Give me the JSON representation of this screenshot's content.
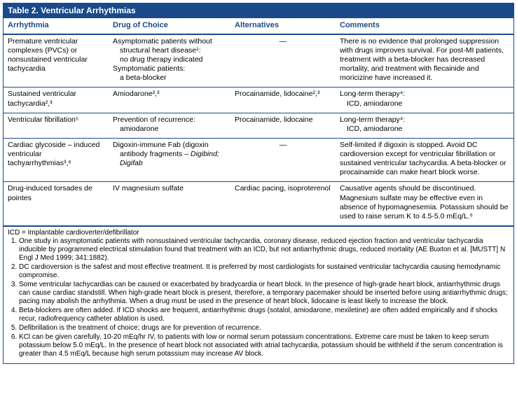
{
  "title": "Table 2. Ventricular Arrhythmias",
  "columns": [
    "Arrhythmia",
    "Drug of Choice",
    "Alternatives",
    "Comments"
  ],
  "col_widths": [
    "150px",
    "174px",
    "150px",
    "auto"
  ],
  "rows": [
    {
      "arr": "Premature ventricular complexes (PVCs) or nonsustained ventricular tachycardia",
      "drug_lines": [
        {
          "t": "Asymptomatic patients without",
          "indent": false
        },
        {
          "t": "structural heart disease¹:",
          "indent": true
        },
        {
          "t": "no drug therapy indicated",
          "indent": true
        },
        {
          "t": "Symptomatic patients:",
          "indent": false
        },
        {
          "t": "a beta-blocker",
          "indent": true
        }
      ],
      "alt": "—",
      "alt_center": true,
      "com": "There is no evidence that prolonged suppression with drugs improves survival. For post-MI patients, treatment with a beta-blocker has decreased mortality, and treatment with flecainide and moricizine have increased it."
    },
    {
      "arr": "Sustained ventricular tachycardia²,³",
      "drug_lines": [
        {
          "t": "Amiodarone²,³",
          "indent": false
        }
      ],
      "alt": "Procainamide, lidocaine²,³",
      "com_lines": [
        {
          "t": "Long-term therapy⁴:",
          "indent": false
        },
        {
          "t": "ICD, amiodarone",
          "indent": true
        }
      ]
    },
    {
      "arr": "Ventricular fibrillation⁵",
      "drug_lines": [
        {
          "t": "Prevention of recurrence:",
          "indent": false
        },
        {
          "t": "amiodarone",
          "indent": true
        }
      ],
      "alt": "Procainamide, lidocaine",
      "com_lines": [
        {
          "t": "Long-term therapy⁴:",
          "indent": false
        },
        {
          "t": "ICD, amiodarone",
          "indent": true
        }
      ]
    },
    {
      "arr": "Cardiac glycoside – induced ventricular tachyarrhythmias³,⁶",
      "drug_lines": [
        {
          "t": "Digoxin-immune Fab (digoxin",
          "indent": false
        },
        {
          "t_html": "antibody fragments – <em>Digibind; Digifab</em>",
          "indent": true
        }
      ],
      "alt": "—",
      "alt_center": true,
      "com": "Self-limited if digoxin is stopped. Avoid DC cardioversion except for ventricular fibrillation or sustained ventricular tachycardia. A beta-blocker or procainamide can make heart block worse."
    },
    {
      "arr": "Drug-induced torsades de pointes",
      "drug_lines": [
        {
          "t": "IV magnesium sulfate",
          "indent": false
        }
      ],
      "alt": "Cardiac pacing, isoproterenol",
      "com": "Causative agents should be discontinued. Magnesium sulfate may be effective even in absence of hypomagnesemia. Potassium should be used to raise serum K to 4.5-5.0 mEq/L.⁶"
    }
  ],
  "abbrev": "ICD = Implantable cardioverter/defibrillator",
  "footnotes": [
    "One study in asymptomatic patients with nonsustained ventricular tachycardia, coronary disease, reduced ejection fraction and ventricular tachycardia inducible by programmed electrical stimulation found that treatment with an ICD, but not antiarrhythmic drugs, reduced mortality (AE Buxton et al. [MUSTT] N Engl J Med 1999; 341:1882).",
    "DC cardioversion is the safest and most effective treatment. It is preferred by most cardiologists for sustained ventricular tachycardia causing hemodynamic compromise.",
    "Some ventricular tachycardias can be caused or exacerbated by bradycardia or heart block. In the presence of high-grade heart block, antiarrhythmic drugs can cause cardiac standstill. When high-grade heart block is present, therefore, a temporary pacemaker should be inserted before using antiarrhythmic drugs; pacing may abolish the arrhythmia. When a drug must be used in the presence of heart block, lidocaine is least likely to increase the block.",
    "Beta-blockers are often added. If ICD shocks are frequent, antiarrhythmic drugs (sotalol, amiodarone, mexiletine) are often added empirically and if shocks recur, radiofrequency catheter ablation is used.",
    "Defibrillation is the treatment of choice; drugs are for prevention of recurrence.",
    "KCl can be given carefully, 10-20 mEq/hr IV, to patients with low or normal serum potassium concentrations. Extreme care must be taken to keep serum potassium below 5.0 mEq/L. In the presence of heart block not associated with atrial tachycardia, potassium should be withheld if the serum concentration is greater than 4.5 mEq/L because high serum potassium may increase AV block."
  ]
}
